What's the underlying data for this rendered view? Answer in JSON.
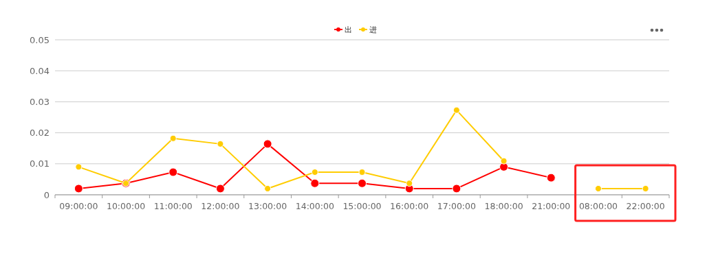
{
  "chart_data": {
    "type": "line",
    "categories": [
      "09:00:00",
      "10:00:00",
      "11:00:00",
      "12:00:00",
      "13:00:00",
      "14:00:00",
      "15:00:00",
      "16:00:00",
      "17:00:00",
      "18:00:00",
      "21:00:00",
      "08:00:00",
      "22:00:00"
    ],
    "series": [
      {
        "name": "出",
        "color": "#ff0000",
        "values": [
          0.002,
          0.0037,
          0.0073,
          0.002,
          0.0164,
          0.0037,
          0.0037,
          0.002,
          0.002,
          0.009,
          0.0055,
          null,
          null
        ]
      },
      {
        "name": "进",
        "color": "#ffcc00",
        "values": [
          0.009,
          0.0037,
          0.0182,
          0.0164,
          0.002,
          0.0073,
          0.0073,
          0.0037,
          0.0273,
          0.0109,
          null,
          0.002,
          0.002
        ]
      }
    ],
    "ylim": [
      0,
      0.05
    ],
    "yticks": [
      0,
      0.01,
      0.02,
      0.03,
      0.04,
      0.05
    ],
    "grid": "y",
    "legend": "top",
    "marker": "circle",
    "line_style": "solid"
  }
}
